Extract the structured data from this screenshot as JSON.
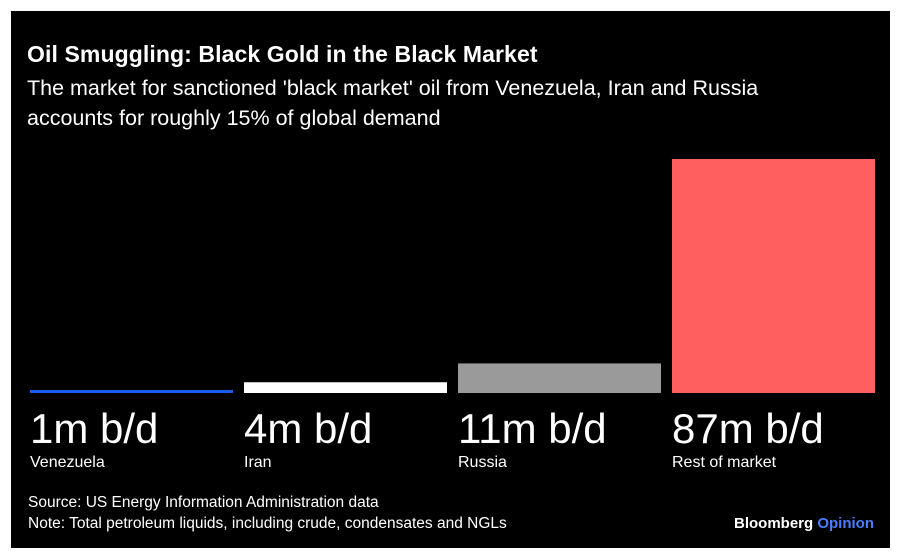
{
  "title": "Oil Smuggling: Black Gold in the Black Market",
  "subtitle": "The market for sanctioned 'black market' oil from Venezuela, Iran and Russia accounts for roughly 15% of global demand",
  "footer": {
    "source": "Source: US Energy Information Administration data",
    "note": "Note: Total petroleum liquids, including crude, condensates and NGLs"
  },
  "brand": {
    "name": "Bloomberg",
    "suffix": "Opinion",
    "suffix_color": "#4a7dff"
  },
  "chart_data": {
    "type": "bar",
    "title": "Oil Smuggling: Black Gold in the Black Market",
    "unit": "m b/d",
    "categories": [
      "Venezuela",
      "Iran",
      "Russia",
      "Rest of market"
    ],
    "values": [
      1,
      4,
      11,
      87
    ],
    "value_labels": [
      "1m b/d",
      "4m b/d",
      "11m b/d",
      "87m b/d"
    ],
    "colors": [
      "#1a5df0",
      "#ffffff",
      "#9a9a9a",
      "#ff5f5f"
    ],
    "xlabel": "",
    "ylabel": "",
    "ylim": [
      0,
      87
    ],
    "grid": false,
    "legend": "none"
  }
}
